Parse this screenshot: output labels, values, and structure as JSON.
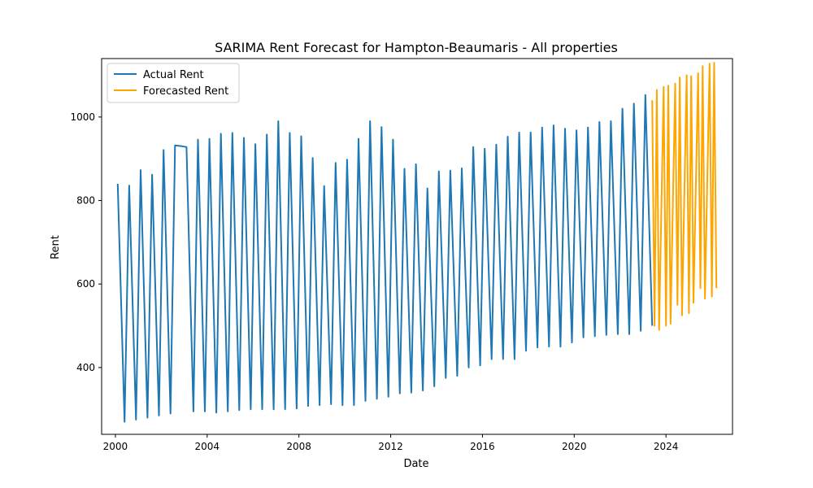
{
  "chart_data": {
    "type": "line",
    "title": "SARIMA Rent Forecast for Hampton-Beaumaris - All properties",
    "xlabel": "Date",
    "ylabel": "Rent",
    "xlim": [
      1999.4,
      2026.9
    ],
    "ylim": [
      240,
      1140
    ],
    "x_ticks": [
      2000,
      2004,
      2008,
      2012,
      2016,
      2020,
      2024
    ],
    "x_tick_labels": [
      "2000",
      "2004",
      "2008",
      "2012",
      "2016",
      "2020",
      "2024"
    ],
    "y_ticks": [
      400,
      600,
      800,
      1000
    ],
    "y_tick_labels": [
      "400",
      "600",
      "800",
      "1000"
    ],
    "grid": false,
    "legend_position": "top-left",
    "colors": {
      "actual": "#1f77b4",
      "forecast": "#ffa500"
    },
    "series": [
      {
        "name": "Actual Rent",
        "x": [
          2000.1,
          2000.4,
          2000.6,
          2000.9,
          2001.1,
          2001.4,
          2001.6,
          2001.9,
          2002.1,
          2002.4,
          2002.6,
          2002.9,
          2003.1,
          2003.4,
          2003.6,
          2003.9,
          2004.1,
          2004.4,
          2004.6,
          2004.9,
          2005.1,
          2005.4,
          2005.6,
          2005.9,
          2006.1,
          2006.4,
          2006.6,
          2006.9,
          2007.1,
          2007.4,
          2007.6,
          2007.9,
          2008.1,
          2008.4,
          2008.6,
          2008.9,
          2009.1,
          2009.4,
          2009.6,
          2009.9,
          2010.1,
          2010.4,
          2010.6,
          2010.9,
          2011.1,
          2011.4,
          2011.6,
          2011.9,
          2012.1,
          2012.4,
          2012.6,
          2012.9,
          2013.1,
          2013.4,
          2013.6,
          2013.9,
          2014.1,
          2014.4,
          2014.6,
          2014.9,
          2015.1,
          2015.4,
          2015.6,
          2015.9,
          2016.1,
          2016.4,
          2016.6,
          2016.9,
          2017.1,
          2017.4,
          2017.6,
          2017.9,
          2018.1,
          2018.4,
          2018.6,
          2018.9,
          2019.1,
          2019.4,
          2019.6,
          2019.9,
          2020.1,
          2020.4,
          2020.6,
          2020.9,
          2021.1,
          2021.4,
          2021.6,
          2021.9,
          2022.1,
          2022.4,
          2022.6,
          2022.9,
          2023.1,
          2023.4
        ],
        "values": [
          840,
          270,
          836,
          275,
          873,
          280,
          862,
          285,
          921,
          290,
          932,
          930,
          928,
          295,
          946,
          295,
          948,
          292,
          960,
          295,
          962,
          298,
          950,
          300,
          935,
          300,
          958,
          300,
          990,
          300,
          962,
          302,
          954,
          308,
          902,
          310,
          835,
          312,
          890,
          310,
          898,
          310,
          948,
          320,
          990,
          325,
          976,
          330,
          946,
          338,
          876,
          340,
          887,
          345,
          829,
          355,
          870,
          375,
          872,
          380,
          877,
          400,
          928,
          405,
          924,
          420,
          934,
          420,
          953,
          420,
          963,
          440,
          963,
          448,
          975,
          450,
          980,
          450,
          972,
          460,
          968,
          472,
          975,
          475,
          988,
          478,
          990,
          480,
          1020,
          480,
          1032,
          488,
          1053,
          500
        ]
      },
      {
        "name": "Forecasted Rent",
        "x": [
          2023.4,
          2023.5,
          2023.6,
          2023.7,
          2023.9,
          2024.0,
          2024.1,
          2024.2,
          2024.4,
          2024.5,
          2024.6,
          2024.7,
          2024.9,
          2025.0,
          2025.1,
          2025.2,
          2025.4,
          2025.5,
          2025.6,
          2025.7,
          2025.9,
          2026.0,
          2026.1,
          2026.2
        ],
        "values": [
          1040,
          500,
          1065,
          490,
          1072,
          500,
          1075,
          505,
          1080,
          550,
          1095,
          525,
          1100,
          530,
          1098,
          555,
          1105,
          590,
          1122,
          565,
          1128,
          570,
          1130,
          590
        ]
      }
    ]
  }
}
